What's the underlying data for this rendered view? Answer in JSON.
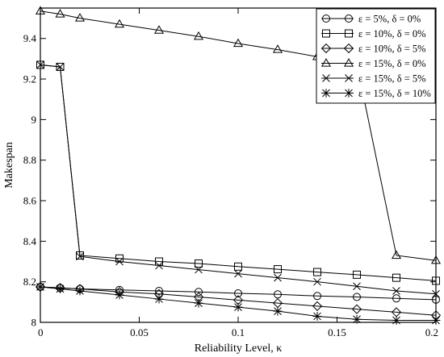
{
  "chart_data": {
    "type": "line",
    "title": "",
    "xlabel": "Reliability Level, κ",
    "ylabel": "Makespan",
    "xlim": [
      0,
      0.2
    ],
    "ylim": [
      8,
      9.55
    ],
    "xticks": [
      0,
      0.05,
      0.1,
      0.15,
      0.2
    ],
    "xtick_labels": [
      "0",
      "0.05",
      "0.1",
      "0.15",
      "0.2"
    ],
    "yticks": [
      8,
      8.2,
      8.4,
      8.6,
      8.8,
      9,
      9.2,
      9.4
    ],
    "ytick_labels": [
      "8",
      "8.2",
      "8.4",
      "8.6",
      "8.8",
      "9",
      "9.2",
      "9.4"
    ],
    "grid": false,
    "legend_position": "top-right",
    "series": [
      {
        "name": "ε = 5%, δ = 0%",
        "marker": "circle",
        "x": [
          0,
          0.01,
          0.02,
          0.04,
          0.06,
          0.08,
          0.1,
          0.12,
          0.14,
          0.16,
          0.18,
          0.2
        ],
        "y": [
          8.175,
          8.17,
          8.165,
          8.16,
          8.155,
          8.15,
          8.143,
          8.138,
          8.13,
          8.125,
          8.118,
          8.112
        ]
      },
      {
        "name": "ε = 10%, δ = 0%",
        "marker": "square",
        "x": [
          0,
          0.01,
          0.02,
          0.04,
          0.06,
          0.08,
          0.1,
          0.12,
          0.14,
          0.16,
          0.18,
          0.2
        ],
        "y": [
          9.27,
          9.26,
          8.33,
          8.315,
          8.3,
          8.29,
          8.275,
          8.262,
          8.248,
          8.235,
          8.22,
          8.205
        ]
      },
      {
        "name": "ε = 10%, δ = 5%",
        "marker": "diamond",
        "x": [
          0,
          0.01,
          0.02,
          0.04,
          0.06,
          0.08,
          0.1,
          0.12,
          0.14,
          0.16,
          0.18,
          0.2
        ],
        "y": [
          8.175,
          8.17,
          8.165,
          8.15,
          8.14,
          8.125,
          8.11,
          8.095,
          8.08,
          8.065,
          8.05,
          8.035
        ]
      },
      {
        "name": "ε = 15%, δ = 0%",
        "marker": "triangle",
        "x": [
          0,
          0.01,
          0.02,
          0.04,
          0.06,
          0.08,
          0.1,
          0.12,
          0.14,
          0.16,
          0.18,
          0.2
        ],
        "y": [
          9.535,
          9.52,
          9.5,
          9.47,
          9.44,
          9.41,
          9.375,
          9.345,
          9.31,
          9.275,
          8.33,
          8.305
        ]
      },
      {
        "name": "ε = 15%, δ = 5%",
        "marker": "x",
        "x": [
          0,
          0.01,
          0.02,
          0.04,
          0.06,
          0.08,
          0.1,
          0.12,
          0.14,
          0.16,
          0.18,
          0.2
        ],
        "y": [
          9.27,
          9.26,
          8.325,
          8.3,
          8.28,
          8.26,
          8.24,
          8.22,
          8.2,
          8.178,
          8.155,
          8.14
        ]
      },
      {
        "name": "ε = 15%, δ = 10%",
        "marker": "star",
        "x": [
          0,
          0.01,
          0.02,
          0.04,
          0.06,
          0.08,
          0.1,
          0.12,
          0.14,
          0.16,
          0.18,
          0.2
        ],
        "y": [
          8.175,
          8.165,
          8.155,
          8.135,
          8.115,
          8.095,
          8.075,
          8.055,
          8.03,
          8.015,
          8.01,
          8.01
        ]
      }
    ]
  }
}
